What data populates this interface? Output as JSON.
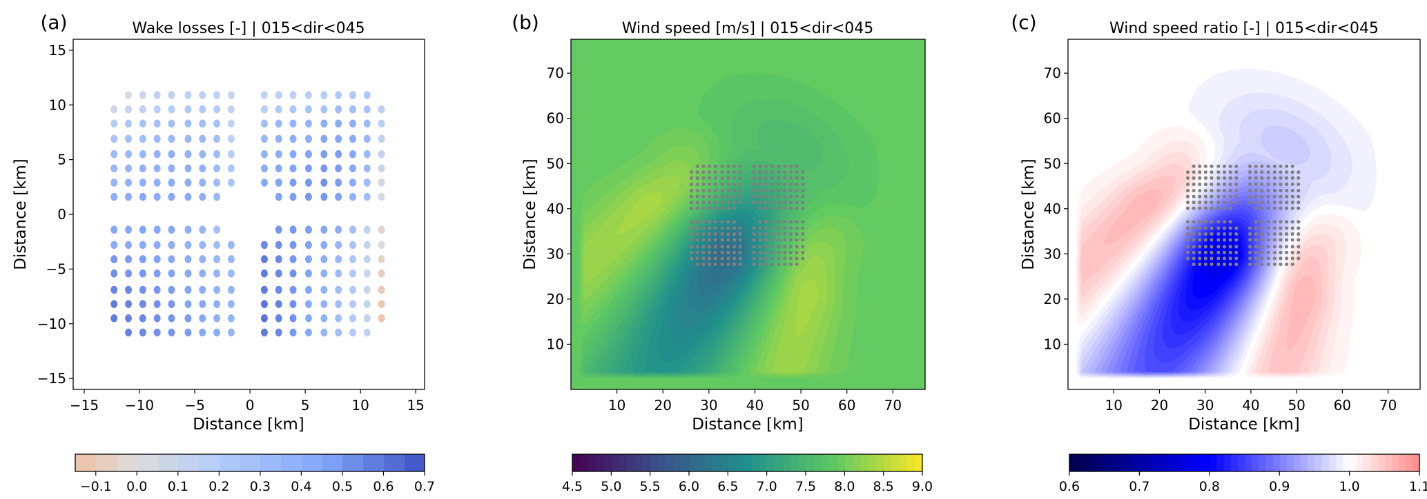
{
  "chart_data": [
    {
      "type": "scatter",
      "panel_label": "(a)",
      "title": "Wake losses [-] | 015<dir<045",
      "xlabel": "Distance [km]",
      "ylabel": "Distance [km]",
      "xlim": [
        -16,
        15.8
      ],
      "ylim": [
        -16,
        16
      ],
      "xticks": [
        -15,
        -10,
        -5,
        0,
        5,
        10,
        15
      ],
      "xtick_labels": [
        "−15",
        "−10",
        "−5",
        "0",
        "5",
        "10",
        "15"
      ],
      "yticks": [
        -15,
        -10,
        -5,
        0,
        5,
        10,
        15
      ],
      "ytick_labels": [
        "−15",
        "−10",
        "−5",
        "0",
        "5",
        "10",
        "15"
      ],
      "colorbar": {
        "range": [
          -0.15,
          0.7
        ],
        "ticks": [
          -0.1,
          0.0,
          0.1,
          0.2,
          0.3,
          0.4,
          0.5,
          0.6,
          0.7
        ],
        "tick_labels": [
          "−0.1",
          "0.0",
          "0.1",
          "0.2",
          "0.3",
          "0.4",
          "0.5",
          "0.6",
          "0.7"
        ],
        "colors": [
          [
            -0.15,
            "#efc2a6"
          ],
          [
            0.0,
            "#dcdcdc"
          ],
          [
            0.2,
            "#b4ccfa"
          ],
          [
            0.45,
            "#84a7fa"
          ],
          [
            0.7,
            "#3f52c6"
          ]
        ]
      },
      "turbines": {
        "x_left": [
          -12.3,
          -11.0,
          -9.7,
          -8.4,
          -7.1,
          -5.6,
          -4.3,
          -3.0,
          -1.7
        ],
        "x_right": [
          1.3,
          2.6,
          3.9,
          5.3,
          6.7,
          8.0,
          9.3,
          10.6,
          11.9
        ],
        "y_upper": [
          10.9,
          9.6,
          8.3,
          6.9,
          5.5,
          4.2,
          2.9,
          1.6
        ],
        "y_lower": [
          -1.4,
          -2.8,
          -4.1,
          -5.4,
          -6.9,
          -8.2,
          -9.5,
          -10.8
        ],
        "blocks": [
          {
            "name": "upper-left",
            "xs": "x_left",
            "ys": "y_upper",
            "wake_loss": [
              [
                null,
                0.02,
                0.08,
                0.12,
                0.14,
                0.16,
                0.16,
                0.15,
                0.1
              ],
              [
                0.08,
                0.1,
                0.14,
                0.18,
                0.2,
                0.22,
                0.22,
                0.2,
                0.12
              ],
              [
                0.2,
                0.24,
                0.26,
                0.28,
                0.3,
                0.3,
                0.3,
                0.28,
                0.14
              ],
              [
                0.26,
                0.28,
                0.3,
                0.32,
                0.34,
                0.34,
                0.34,
                0.3,
                0.16
              ],
              [
                0.32,
                0.34,
                0.36,
                0.38,
                0.4,
                0.38,
                0.36,
                0.32,
                0.2
              ],
              [
                0.34,
                0.36,
                0.38,
                0.38,
                0.4,
                0.4,
                0.38,
                0.32,
                0.24
              ],
              [
                0.36,
                0.38,
                0.4,
                0.4,
                0.42,
                0.42,
                0.38,
                0.32,
                0.26
              ],
              [
                0.4,
                0.42,
                0.44,
                0.42,
                0.44,
                0.42,
                0.4,
                0.34,
                null
              ]
            ]
          },
          {
            "name": "upper-right",
            "xs": "x_right",
            "ys": "y_upper",
            "wake_loss": [
              [
                0.14,
                0.16,
                0.16,
                0.18,
                0.2,
                0.22,
                0.22,
                0.22,
                null
              ],
              [
                0.18,
                0.22,
                0.24,
                0.26,
                0.28,
                0.3,
                0.3,
                0.26,
                0.16
              ],
              [
                0.3,
                0.34,
                0.36,
                0.36,
                0.4,
                0.42,
                0.4,
                0.32,
                0.16
              ],
              [
                0.34,
                0.38,
                0.4,
                0.4,
                0.44,
                0.44,
                0.42,
                0.34,
                0.14
              ],
              [
                0.38,
                0.42,
                0.44,
                0.46,
                0.48,
                0.48,
                0.44,
                0.34,
                0.12
              ],
              [
                0.42,
                0.44,
                0.46,
                0.48,
                0.5,
                0.48,
                0.44,
                0.34,
                0.1
              ],
              [
                0.44,
                0.46,
                0.48,
                0.5,
                0.52,
                0.48,
                0.42,
                0.32,
                0.06
              ],
              [
                null,
                0.46,
                0.48,
                0.5,
                0.5,
                0.46,
                0.38,
                0.3,
                0.04
              ]
            ]
          },
          {
            "name": "lower-left",
            "xs": "x_left",
            "ys": "y_lower",
            "wake_loss": [
              [
                0.44,
                0.44,
                0.46,
                0.44,
                0.44,
                0.4,
                0.36,
                0.28,
                null
              ],
              [
                0.42,
                0.42,
                0.42,
                0.42,
                0.4,
                0.38,
                0.34,
                0.3,
                0.34
              ],
              [
                0.5,
                0.48,
                0.48,
                0.46,
                0.44,
                0.42,
                0.38,
                0.34,
                0.34
              ],
              [
                0.52,
                0.5,
                0.5,
                0.48,
                0.46,
                0.44,
                0.4,
                0.36,
                0.34
              ],
              [
                0.56,
                0.54,
                0.52,
                0.5,
                0.48,
                0.46,
                0.42,
                0.38,
                0.36
              ],
              [
                0.58,
                0.56,
                0.54,
                0.52,
                0.5,
                0.46,
                0.44,
                0.4,
                0.36
              ],
              [
                0.58,
                0.56,
                0.54,
                0.52,
                0.5,
                0.48,
                0.44,
                0.4,
                0.36
              ],
              [
                null,
                0.56,
                0.54,
                0.52,
                0.5,
                0.48,
                0.44,
                0.42,
                0.36
              ]
            ]
          },
          {
            "name": "lower-right",
            "xs": "x_right",
            "ys": "y_lower",
            "wake_loss": [
              [
                null,
                0.5,
                0.5,
                0.48,
                0.44,
                0.4,
                0.3,
                0.14,
                -0.04
              ],
              [
                0.54,
                0.52,
                0.5,
                0.46,
                0.42,
                0.36,
                0.26,
                0.12,
                -0.02
              ],
              [
                0.58,
                0.54,
                0.5,
                0.46,
                0.4,
                0.34,
                0.24,
                0.12,
                -0.06
              ],
              [
                0.58,
                0.54,
                0.52,
                0.46,
                0.4,
                0.32,
                0.22,
                0.1,
                -0.08
              ],
              [
                0.58,
                0.54,
                0.5,
                0.44,
                0.38,
                0.3,
                0.22,
                0.1,
                -0.1
              ],
              [
                0.6,
                0.56,
                0.52,
                0.44,
                0.38,
                0.3,
                0.22,
                0.12,
                -0.12
              ],
              [
                0.6,
                0.56,
                0.52,
                0.44,
                0.38,
                0.3,
                0.22,
                0.12,
                -0.14
              ],
              [
                0.58,
                0.54,
                0.5,
                0.44,
                0.36,
                0.3,
                0.22,
                0.14,
                null
              ]
            ]
          }
        ]
      }
    },
    {
      "type": "heatmap",
      "panel_label": "(b)",
      "title": "Wind speed [m/s] | 015<dir<045",
      "xlabel": "Distance [km]",
      "ylabel": "Distance [km]",
      "xlim": [
        0,
        77
      ],
      "ylim": [
        0,
        77.5
      ],
      "xticks": [
        10,
        20,
        30,
        40,
        50,
        60,
        70
      ],
      "xtick_labels": [
        "10",
        "20",
        "30",
        "40",
        "50",
        "60",
        "70"
      ],
      "yticks": [
        10,
        20,
        30,
        40,
        50,
        60,
        70
      ],
      "ytick_labels": [
        "10",
        "20",
        "30",
        "40",
        "50",
        "60",
        "70"
      ],
      "field": {
        "quantity": "wind_speed",
        "freestream": 7.9,
        "level_step": 0.1,
        "farm_center_km": [
          38.5,
          38.5
        ]
      },
      "colorbar": {
        "range": [
          4.5,
          9.0
        ],
        "ticks": [
          4.5,
          5.0,
          5.5,
          6.0,
          6.5,
          7.0,
          7.5,
          8.0,
          8.5,
          9.0
        ],
        "tick_labels": [
          "4.5",
          "5.0",
          "5.5",
          "6.0",
          "6.5",
          "7.0",
          "7.5",
          "8.0",
          "8.5",
          "9.0"
        ],
        "colors": [
          [
            0,
            "#440154"
          ],
          [
            0.25,
            "#3b528b"
          ],
          [
            0.5,
            "#21918c"
          ],
          [
            0.75,
            "#5ec962"
          ],
          [
            1,
            "#fde725"
          ]
        ]
      },
      "turbine_color": "#808080"
    },
    {
      "type": "heatmap",
      "panel_label": "(c)",
      "title": "Wind speed ratio [-] | 015<dir<045",
      "xlabel": "Distance [km]",
      "ylabel": "Distance [km]",
      "xlim": [
        0,
        77
      ],
      "ylim": [
        0,
        77.5
      ],
      "xticks": [
        10,
        20,
        30,
        40,
        50,
        60,
        70
      ],
      "xtick_labels": [
        "10",
        "20",
        "30",
        "40",
        "50",
        "60",
        "70"
      ],
      "yticks": [
        10,
        20,
        30,
        40,
        50,
        60,
        70
      ],
      "ytick_labels": [
        "10",
        "20",
        "30",
        "40",
        "50",
        "60",
        "70"
      ],
      "field": {
        "quantity": "wind_speed_ratio",
        "freestream": 1.0,
        "level_step": 0.01,
        "farm_center_km": [
          38.5,
          38.5
        ]
      },
      "colorbar": {
        "range": [
          0.6,
          1.1
        ],
        "ticks": [
          0.6,
          0.7,
          0.8,
          0.9,
          1.0,
          1.1
        ],
        "tick_labels": [
          "0.6",
          "0.7",
          "0.8",
          "0.9",
          "1.0",
          "1.1"
        ],
        "colors": [
          [
            0,
            "#00004c"
          ],
          [
            0.4,
            "#0000ff"
          ],
          [
            0.8,
            "#ffffff"
          ],
          [
            1,
            "#ff8a8a"
          ]
        ]
      },
      "turbine_color": "#808080"
    }
  ]
}
